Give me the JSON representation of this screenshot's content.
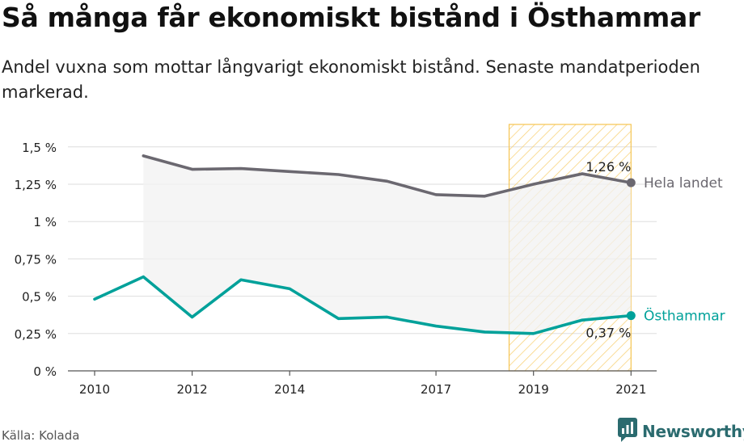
{
  "header": {
    "title": "Så många får ekonomiskt bistånd i Östhammar",
    "subtitle": "Andel vuxna som mottar långvarigt ekonomiskt bistånd. Senaste mandatperioden markerad."
  },
  "footer": {
    "source": "Källa: Kolada",
    "brand": "Newsworthy",
    "brand_icon": "newsworthy-logo-icon"
  },
  "colors": {
    "national": "#6b6870",
    "local": "#00a19a",
    "highlight_stroke": "#f6c451",
    "highlight_hatch": "#f9d47e",
    "grid": "#dddddd",
    "band": "#f2f2f2",
    "brand": "#2b6b6f"
  },
  "chart_data": {
    "type": "line",
    "x": [
      2010,
      2011,
      2012,
      2013,
      2014,
      2015,
      2016,
      2017,
      2018,
      2019,
      2020,
      2021
    ],
    "xticks": [
      2010,
      2012,
      2014,
      2017,
      2019,
      2021
    ],
    "ylim": [
      0,
      1.6
    ],
    "yticks": [
      {
        "value": 0,
        "label": "0 %"
      },
      {
        "value": 0.25,
        "label": "0,25 %"
      },
      {
        "value": 0.5,
        "label": "0,5 %"
      },
      {
        "value": 0.75,
        "label": "0,75 %"
      },
      {
        "value": 1,
        "label": "1 %"
      },
      {
        "value": 1.25,
        "label": "1,25 %"
      },
      {
        "value": 1.5,
        "label": "1,5 %"
      }
    ],
    "highlight_range": [
      2018.5,
      2021
    ],
    "grid": true,
    "series": [
      {
        "name": "Hela landet",
        "color_key": "national",
        "values": [
          null,
          1.44,
          1.35,
          1.355,
          1.335,
          1.315,
          1.27,
          1.18,
          1.17,
          1.25,
          1.32,
          1.26
        ],
        "end_label": "1,26 %"
      },
      {
        "name": "Östhammar",
        "color_key": "local",
        "values": [
          0.48,
          0.63,
          0.36,
          0.61,
          0.55,
          0.35,
          0.36,
          0.3,
          0.26,
          0.25,
          0.34,
          0.37
        ],
        "end_label": "0,37 %"
      }
    ]
  }
}
